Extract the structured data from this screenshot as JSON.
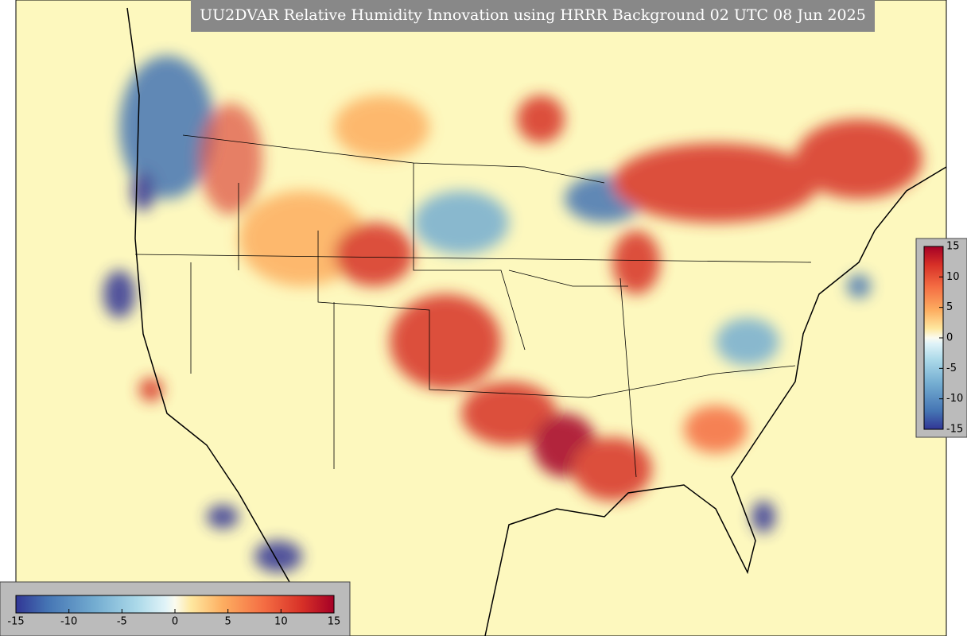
{
  "title": "UU2DVAR Relative Humidity Innovation using HRRR Background 02 UTC 08 Jun 2025",
  "colorbars": [
    {
      "orientation": "vertical",
      "lim": [
        -15,
        15
      ],
      "ticks": [
        15,
        10,
        5,
        0,
        -5,
        -10,
        -15
      ]
    },
    {
      "orientation": "horizontal",
      "lim": [
        -15,
        15
      ],
      "ticks": [
        -15,
        -10,
        -5,
        0,
        5,
        10,
        15
      ]
    }
  ]
}
